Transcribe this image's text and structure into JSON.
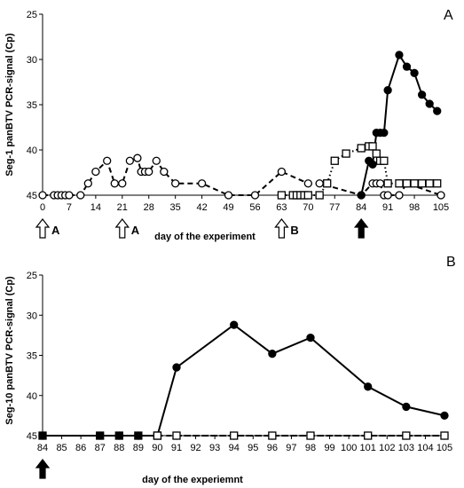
{
  "chart_data": [
    {
      "type": "line",
      "panel_label": "A",
      "xlabel": "day of the experiment",
      "ylabel": "Seg-1 panBTV PCR-signal (Cp)",
      "xlim": [
        0,
        105
      ],
      "ylim": [
        25,
        45
      ],
      "y_inverted": true,
      "x_ticks": [
        "0",
        "7",
        "14",
        "21",
        "28",
        "35",
        "42",
        "49",
        "56",
        "63",
        "70",
        "77",
        "84",
        "91",
        "98",
        "105"
      ],
      "y_ticks": [
        "25",
        "30",
        "35",
        "40",
        "45"
      ],
      "grid": false,
      "series": [
        {
          "marker": "open-circle",
          "line": "dashed",
          "x": [
            0,
            3,
            4,
            5,
            6,
            7,
            10,
            12,
            14,
            17,
            19,
            21,
            23,
            25,
            26,
            27,
            28,
            30,
            32,
            35,
            42,
            49,
            56,
            63,
            70,
            73,
            84,
            87,
            88,
            89,
            90,
            91,
            94,
            96,
            105
          ],
          "y": [
            45,
            45,
            45,
            45,
            45,
            45,
            45,
            43.7,
            42.4,
            41.2,
            43.7,
            43.7,
            41.2,
            40.9,
            42.4,
            42.4,
            42.4,
            41.2,
            42.4,
            43.7,
            43.7,
            45,
            45,
            42.4,
            43.7,
            43.7,
            45,
            43.7,
            43.7,
            43.7,
            45,
            45,
            45,
            43.7,
            45
          ]
        },
        {
          "marker": "open-square",
          "line": "dotted",
          "x": [
            63,
            66,
            67,
            68,
            69,
            70,
            73,
            75,
            77,
            80,
            84,
            86,
            87,
            88,
            89,
            90,
            91,
            94,
            96,
            98,
            100,
            102,
            104
          ],
          "y": [
            45,
            45,
            45,
            45,
            45,
            45,
            45,
            43.7,
            41.2,
            40.4,
            39.8,
            39.6,
            39.6,
            40.4,
            41.2,
            41.2,
            43.7,
            43.7,
            43.7,
            43.7,
            43.7,
            43.7,
            43.7
          ]
        },
        {
          "marker": "filled-circle",
          "line": "solid",
          "x": [
            84,
            86,
            87,
            88,
            89,
            90,
            91,
            94,
            96,
            98,
            100,
            102,
            104
          ],
          "y": [
            45,
            41.2,
            41.6,
            38.1,
            38.1,
            38.1,
            33.4,
            29.5,
            30.8,
            31.5,
            33.9,
            34.9,
            35.7
          ]
        }
      ],
      "markers": [
        {
          "day": 0,
          "style": "open",
          "label": "A"
        },
        {
          "day": 21,
          "style": "open",
          "label": "A"
        },
        {
          "day": 63,
          "style": "open",
          "label": "B"
        },
        {
          "day": 84,
          "style": "filled",
          "label": ""
        }
      ]
    },
    {
      "type": "line",
      "panel_label": "B",
      "xlabel": "day of the experiemnt",
      "ylabel": "Seg-10 panBTV PCR-signal (Cp)",
      "x_categories": [
        "84",
        "85",
        "86",
        "87",
        "88",
        "89",
        "90",
        "91",
        "92",
        "93",
        "94",
        "95",
        "96",
        "97",
        "98",
        "99",
        "100",
        "101",
        "102",
        "103",
        "104",
        "105"
      ],
      "x_ticks": [
        "84",
        "85",
        "86",
        "87",
        "88",
        "89",
        "90",
        "91",
        "92",
        "93",
        "94",
        "95",
        "96",
        "97",
        "98",
        "99",
        "100",
        "101",
        "102",
        "103",
        "104",
        "105"
      ],
      "ylim": [
        25,
        45
      ],
      "y_inverted": true,
      "y_ticks": [
        "25",
        "30",
        "35",
        "40",
        "45"
      ],
      "grid": false,
      "series": [
        {
          "marker": "filled-circle",
          "line": "solid",
          "x": [
            84,
            87,
            88,
            89,
            90,
            91,
            94,
            96,
            98,
            101,
            103,
            105
          ],
          "y": [
            45,
            45,
            45,
            45,
            45,
            36.5,
            31.2,
            34.8,
            32.8,
            38.9,
            41.4,
            42.5
          ]
        },
        {
          "marker": "filled-square",
          "line": "solid",
          "x": [
            84,
            87,
            88,
            89,
            90
          ],
          "y": [
            45,
            45,
            45,
            45,
            45
          ]
        },
        {
          "marker": "open-circle",
          "line": "dashed",
          "x": [
            91,
            94,
            96,
            98,
            101,
            103,
            105
          ],
          "y": [
            45,
            45,
            45,
            45,
            45,
            45,
            45
          ]
        },
        {
          "marker": "open-square",
          "line": "dashed",
          "x": [
            90,
            91,
            94,
            96,
            98,
            101,
            103,
            105
          ],
          "y": [
            45,
            45,
            45,
            45,
            45,
            45,
            45,
            45
          ]
        }
      ],
      "markers": [
        {
          "day": 84,
          "style": "filled",
          "label": ""
        }
      ]
    }
  ]
}
